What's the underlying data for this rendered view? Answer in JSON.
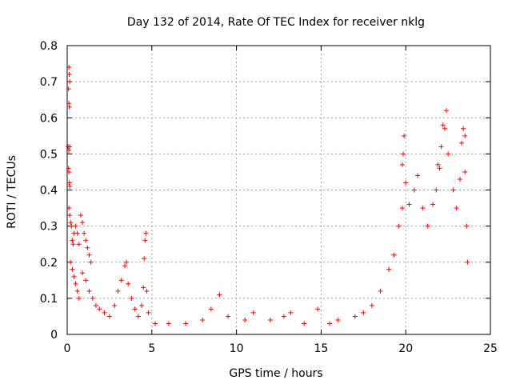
{
  "chart_data": {
    "type": "scatter",
    "title": "Day 132 of 2014, Rate Of TEC Index for receiver nklg",
    "xlabel": "GPS time / hours",
    "ylabel": "ROTI / TECUs",
    "xlim": [
      0,
      25
    ],
    "ylim": [
      0,
      0.8
    ],
    "xticks": [
      0,
      5,
      10,
      15,
      20,
      25
    ],
    "xtick_labels": [
      "0",
      "5",
      "10",
      "15",
      "20",
      "25"
    ],
    "yticks": [
      0,
      0.1,
      0.2,
      0.3,
      0.4,
      0.5,
      0.6,
      0.7,
      0.8
    ],
    "ytick_labels": [
      "0",
      "0.1",
      "0.2",
      "0.3",
      "0.4",
      "0.5",
      "0.6",
      "0.7",
      "0.8"
    ],
    "grid": true,
    "marker": "+",
    "color": "#ff0000",
    "series": [
      {
        "name": "ROTI",
        "points": [
          [
            0.1,
            0.74
          ],
          [
            0.12,
            0.72
          ],
          [
            0.15,
            0.7
          ],
          [
            0.08,
            0.68
          ],
          [
            0.1,
            0.64
          ],
          [
            0.12,
            0.63
          ],
          [
            0.05,
            0.52
          ],
          [
            0.1,
            0.51
          ],
          [
            0.15,
            0.52
          ],
          [
            0.08,
            0.46
          ],
          [
            0.1,
            0.45
          ],
          [
            0.12,
            0.42
          ],
          [
            0.15,
            0.41
          ],
          [
            0.1,
            0.35
          ],
          [
            0.15,
            0.33
          ],
          [
            0.2,
            0.31
          ],
          [
            0.25,
            0.3
          ],
          [
            0.3,
            0.26
          ],
          [
            0.35,
            0.25
          ],
          [
            0.4,
            0.28
          ],
          [
            0.5,
            0.3
          ],
          [
            0.6,
            0.28
          ],
          [
            0.7,
            0.25
          ],
          [
            0.8,
            0.33
          ],
          [
            0.9,
            0.31
          ],
          [
            1.0,
            0.28
          ],
          [
            1.1,
            0.26
          ],
          [
            1.2,
            0.24
          ],
          [
            1.3,
            0.22
          ],
          [
            1.4,
            0.2
          ],
          [
            0.2,
            0.2
          ],
          [
            0.3,
            0.18
          ],
          [
            0.4,
            0.16
          ],
          [
            0.5,
            0.14
          ],
          [
            0.6,
            0.12
          ],
          [
            0.7,
            0.1
          ],
          [
            0.9,
            0.17
          ],
          [
            1.1,
            0.15
          ],
          [
            1.3,
            0.12
          ],
          [
            1.5,
            0.1
          ],
          [
            1.7,
            0.08
          ],
          [
            1.9,
            0.07
          ],
          [
            2.2,
            0.06
          ],
          [
            2.5,
            0.05
          ],
          [
            2.8,
            0.08
          ],
          [
            3.0,
            0.12
          ],
          [
            3.2,
            0.15
          ],
          [
            3.4,
            0.19
          ],
          [
            3.5,
            0.2
          ],
          [
            3.6,
            0.14
          ],
          [
            3.8,
            0.1
          ],
          [
            4.0,
            0.07
          ],
          [
            4.2,
            0.05
          ],
          [
            4.4,
            0.08
          ],
          [
            4.5,
            0.13
          ],
          [
            4.55,
            0.21
          ],
          [
            4.6,
            0.26
          ],
          [
            4.65,
            0.28
          ],
          [
            4.7,
            0.12
          ],
          [
            4.8,
            0.06
          ],
          [
            5.2,
            0.03
          ],
          [
            6.0,
            0.03
          ],
          [
            7.0,
            0.03
          ],
          [
            8.0,
            0.04
          ],
          [
            8.5,
            0.07
          ],
          [
            9.0,
            0.11
          ],
          [
            9.5,
            0.05
          ],
          [
            10.5,
            0.04
          ],
          [
            11.0,
            0.06
          ],
          [
            12.0,
            0.04
          ],
          [
            12.8,
            0.05
          ],
          [
            13.2,
            0.06
          ],
          [
            14.0,
            0.03
          ],
          [
            14.8,
            0.07
          ],
          [
            15.5,
            0.03
          ],
          [
            16.0,
            0.04
          ],
          [
            17.0,
            0.05
          ],
          [
            17.5,
            0.06
          ],
          [
            18.0,
            0.08
          ],
          [
            18.5,
            0.12
          ],
          [
            19.0,
            0.18
          ],
          [
            19.3,
            0.22
          ],
          [
            19.6,
            0.3
          ],
          [
            19.8,
            0.35
          ],
          [
            19.8,
            0.47
          ],
          [
            19.85,
            0.5
          ],
          [
            19.9,
            0.55
          ],
          [
            20.0,
            0.42
          ],
          [
            20.2,
            0.36
          ],
          [
            20.5,
            0.4
          ],
          [
            20.7,
            0.44
          ],
          [
            21.0,
            0.35
          ],
          [
            21.3,
            0.3
          ],
          [
            21.6,
            0.36
          ],
          [
            21.8,
            0.4
          ],
          [
            21.9,
            0.47
          ],
          [
            22.0,
            0.46
          ],
          [
            22.1,
            0.52
          ],
          [
            22.2,
            0.58
          ],
          [
            22.3,
            0.57
          ],
          [
            22.4,
            0.62
          ],
          [
            22.5,
            0.5
          ],
          [
            22.8,
            0.4
          ],
          [
            23.0,
            0.35
          ],
          [
            23.2,
            0.43
          ],
          [
            23.3,
            0.53
          ],
          [
            23.4,
            0.57
          ],
          [
            23.5,
            0.55
          ],
          [
            23.5,
            0.45
          ],
          [
            23.6,
            0.3
          ],
          [
            23.65,
            0.2
          ]
        ]
      }
    ]
  }
}
